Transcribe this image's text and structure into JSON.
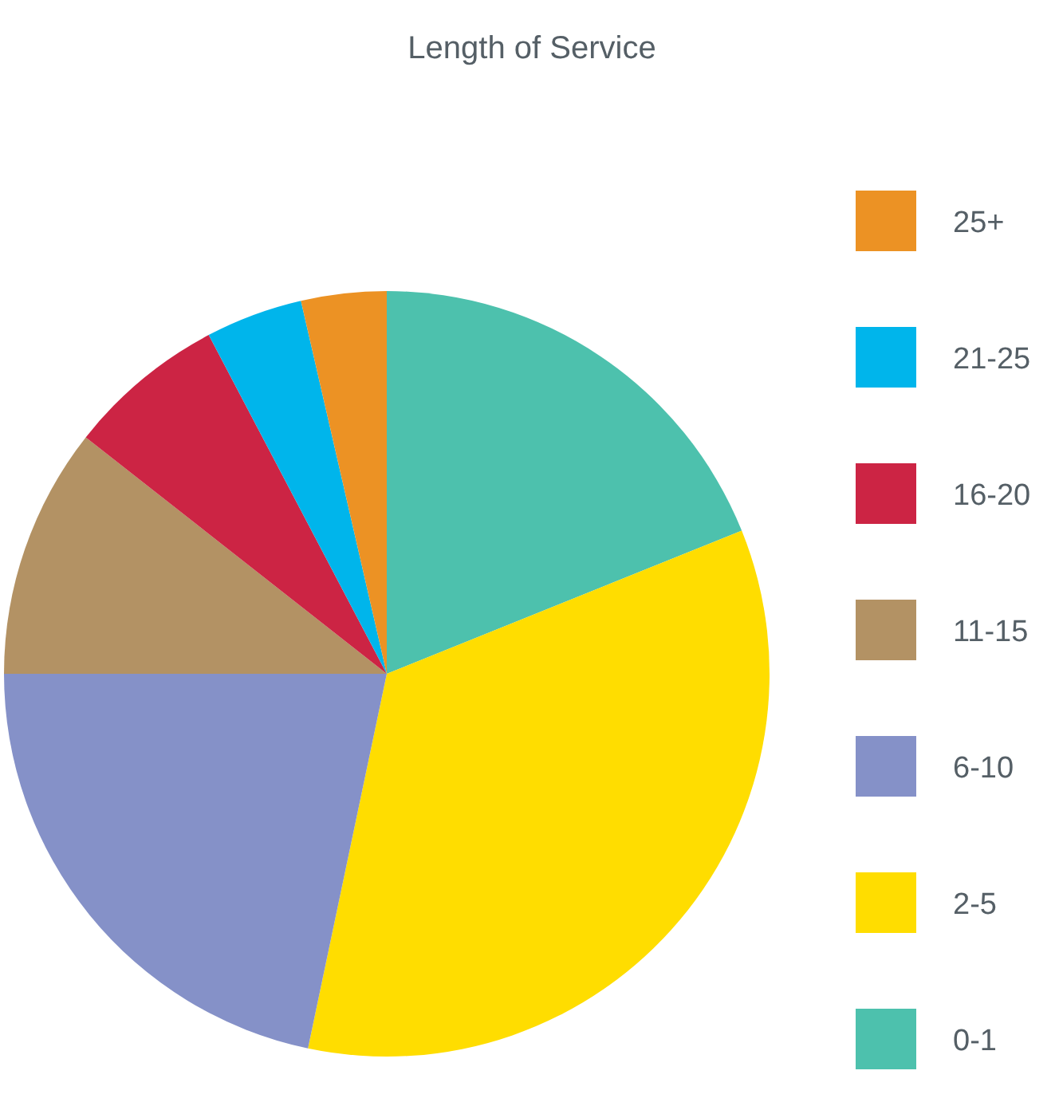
{
  "chart_data": {
    "type": "pie",
    "title": "Length of Service",
    "categories": [
      "0-1",
      "2-5",
      "6-10",
      "11-15",
      "16-20",
      "21-25",
      "25+"
    ],
    "values": [
      18.9,
      34.4,
      21.7,
      10.6,
      6.7,
      4.1,
      3.6
    ],
    "colors": [
      "#4dc1ad",
      "#ffdd00",
      "#8591c8",
      "#b39264",
      "#cc2444",
      "#00b5eb",
      "#ec9224"
    ],
    "legend": "right"
  }
}
